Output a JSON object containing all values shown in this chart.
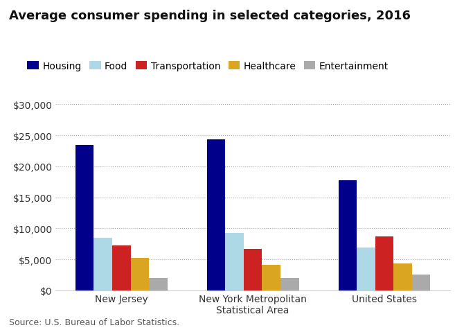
{
  "title": "Average consumer spending in selected categories, 2016",
  "categories": [
    "New Jersey",
    "New York Metropolitan\nStatistical Area",
    "United States"
  ],
  "series": [
    {
      "label": "Housing",
      "color": "#00008B",
      "values": [
        23500,
        24400,
        17800
      ]
    },
    {
      "label": "Food",
      "color": "#ADD8E6",
      "values": [
        8500,
        9300,
        6900
      ]
    },
    {
      "label": "Transportation",
      "color": "#CC2222",
      "values": [
        7200,
        6700,
        8700
      ]
    },
    {
      "label": "Healthcare",
      "color": "#DAA520",
      "values": [
        5200,
        4100,
        4300
      ]
    },
    {
      "label": "Entertainment",
      "color": "#AAAAAA",
      "values": [
        2000,
        2000,
        2500
      ]
    }
  ],
  "ylim": [
    0,
    32000
  ],
  "yticks": [
    0,
    5000,
    10000,
    15000,
    20000,
    25000,
    30000
  ],
  "source": "Source: U.S. Bureau of Labor Statistics.",
  "background_color": "#FFFFFF",
  "grid_color": "#AAAAAA",
  "title_fontsize": 13,
  "legend_fontsize": 10,
  "tick_fontsize": 10,
  "source_fontsize": 9
}
